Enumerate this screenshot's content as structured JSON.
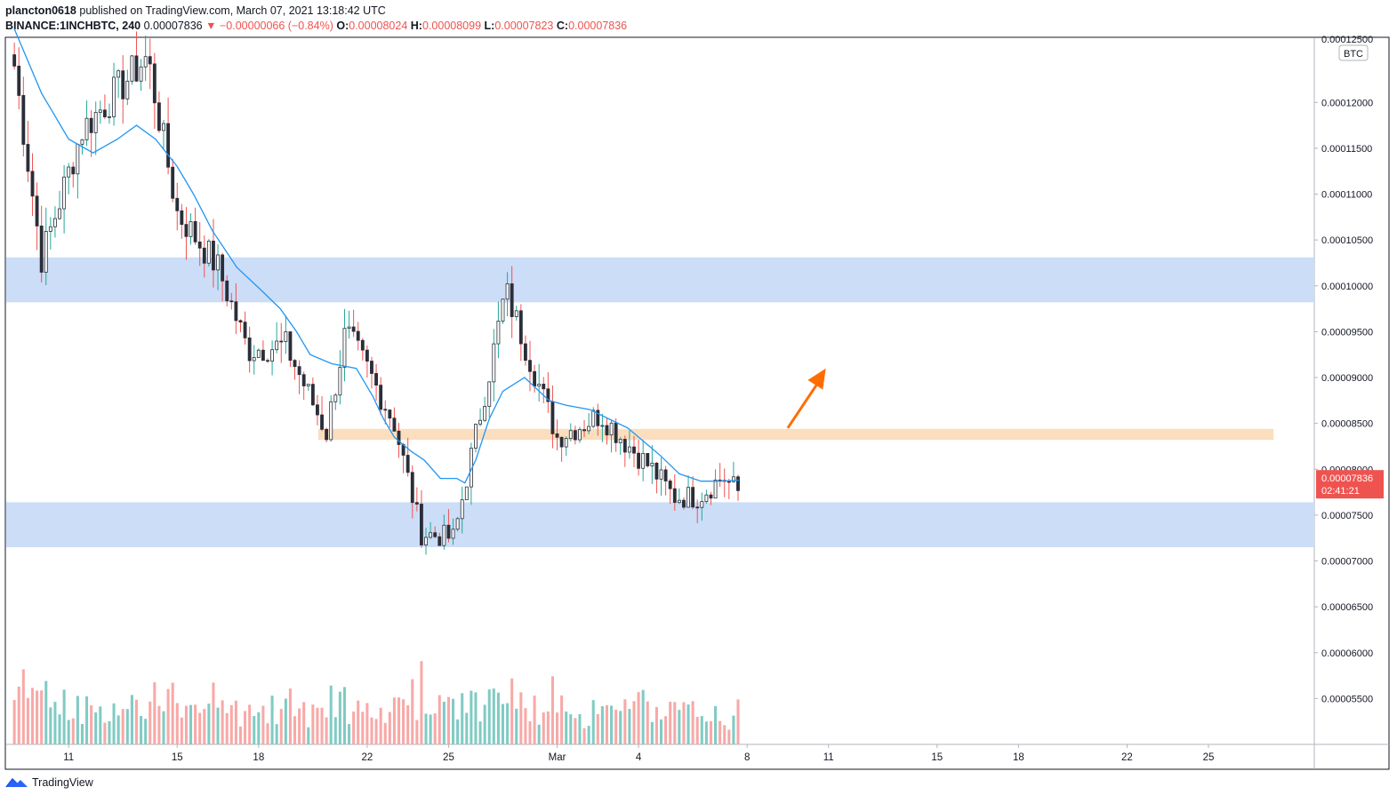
{
  "header": {
    "publisher": "plancton0618",
    "published_text": "published on TradingView.com, March 07, 2021 13:18:42 UTC",
    "symbol": "BINANCE:1INCHBTC, 240",
    "last_price": "0.00007836",
    "change_arrow": "▼",
    "change": "−0.00000066 (−0.84%)",
    "o_label": "O:",
    "o_value": "0.00008024",
    "h_label": "H:",
    "h_value": "0.00008099",
    "l_label": "L:",
    "l_value": "0.00007823",
    "c_label": "C:",
    "c_value": "0.00007836"
  },
  "footer": {
    "brand": "TradingView",
    "logo_icon": "tradingview-logo-icon"
  },
  "colors": {
    "up": "#26a69a",
    "down": "#ef5350",
    "candle_body": "#2a2e39",
    "ma_line": "#2196f3",
    "support_zone": "#c9dbf7",
    "orange_zone": "#fbdcbb",
    "arrow": "#ff6d00",
    "price_badge": "#ef5350",
    "grid": "#e0e3eb"
  },
  "chart_data": {
    "type": "candlestick",
    "currency_badge": "BTC",
    "y_range": [
      5e-05,
      0.000127
    ],
    "y_ticks": [
      "0.00005500",
      "0.00006000",
      "0.00006500",
      "0.00007000",
      "0.00007500",
      "0.00008000",
      "0.00008500",
      "0.00009000",
      "0.00009500",
      "0.00010000",
      "0.00010500",
      "0.00011000",
      "0.00011500",
      "0.00012000"
    ],
    "y_tick_values": [
      5.5e-05,
      6e-05,
      6.5e-05,
      7e-05,
      7.5e-05,
      8e-05,
      8.5e-05,
      9e-05,
      9.5e-05,
      0.0001,
      0.000105,
      0.00011,
      0.000115,
      0.00012
    ],
    "top_partial_label": "0.00012500",
    "x_ticks": [
      "11",
      "15",
      "18",
      "22",
      "25",
      "Mar",
      "4",
      "8",
      "11",
      "15",
      "18",
      "22",
      "25"
    ],
    "x_tick_days": [
      2,
      6,
      9,
      13,
      16,
      20,
      23,
      27,
      30,
      34,
      37,
      41,
      44
    ],
    "x_day_range": [
      -0.3,
      47.9
    ],
    "current_price": {
      "label": "0.00007836",
      "countdown": "02:41:21",
      "value": 7.836e-05
    },
    "zones": [
      {
        "kind": "resistance",
        "color": "blue",
        "low": 9.82e-05,
        "high": 0.0001031,
        "from_day": -0.3,
        "to_day": 47.9
      },
      {
        "kind": "pivot",
        "color": "orange",
        "low": 8.32e-05,
        "high": 8.44e-05,
        "from_day": 11.2,
        "to_day": 46.4
      },
      {
        "kind": "support",
        "color": "blue",
        "low": 7.15e-05,
        "high": 7.64e-05,
        "from_day": -0.3,
        "to_day": 47.9
      }
    ],
    "arrow": {
      "from_day": 28.5,
      "from_value": 8.45e-05,
      "to_day": 29.9,
      "to_value": 9.1e-05
    },
    "key_points": [
      [
        0.0,
        0.000124
      ],
      [
        1.0,
        0.000103
      ],
      [
        2.5,
        0.000117
      ],
      [
        4.9,
        0.000125
      ],
      [
        6.0,
        0.000108
      ],
      [
        7.5,
        0.000102
      ],
      [
        8.6,
        9.3e-05
      ],
      [
        10.0,
        9.35e-05
      ],
      [
        11.5,
        8.4e-05
      ],
      [
        12.2,
        9.5e-05
      ],
      [
        13.0,
        9.1e-05
      ],
      [
        14.0,
        8.5e-05
      ],
      [
        15.0,
        7.3e-05
      ],
      [
        16.2,
        7.25e-05
      ],
      [
        16.8,
        8.1e-05
      ],
      [
        17.6,
        9.2e-05
      ],
      [
        18.1,
        9.95e-05
      ],
      [
        19.0,
        9.2e-05
      ],
      [
        20.0,
        8.35e-05
      ],
      [
        21.0,
        8.5e-05
      ],
      [
        21.6,
        8.6e-05
      ],
      [
        22.5,
        8.3e-05
      ],
      [
        23.5,
        8e-05
      ],
      [
        24.3,
        7.7e-05
      ],
      [
        25.2,
        7.7e-05
      ],
      [
        26.1,
        7.92e-05
      ],
      [
        26.7,
        7.75e-05
      ]
    ],
    "ma_points": [
      [
        0.0,
        0.000128
      ],
      [
        1.0,
        0.000121
      ],
      [
        2.0,
        0.000116
      ],
      [
        2.9,
        0.0001145
      ],
      [
        3.8,
        0.000116
      ],
      [
        4.5,
        0.0001175
      ],
      [
        5.2,
        0.000116
      ],
      [
        6.0,
        0.000113
      ],
      [
        6.6,
        0.00011
      ],
      [
        7.3,
        0.000106
      ],
      [
        8.2,
        0.000102
      ],
      [
        9.1,
        9.95e-05
      ],
      [
        9.8,
        9.75e-05
      ],
      [
        10.4,
        9.5e-05
      ],
      [
        10.9,
        9.25e-05
      ],
      [
        11.7,
        9.15e-05
      ],
      [
        12.6,
        9.1e-05
      ],
      [
        13.2,
        8.8e-05
      ],
      [
        13.6,
        8.55e-05
      ],
      [
        14.0,
        8.35e-05
      ],
      [
        14.6,
        8.2e-05
      ],
      [
        15.1,
        8.1e-05
      ],
      [
        15.7,
        7.9e-05
      ],
      [
        16.3,
        7.9e-05
      ],
      [
        16.6,
        7.85e-05
      ],
      [
        17.0,
        8.1e-05
      ],
      [
        17.5,
        8.55e-05
      ],
      [
        18.0,
        8.85e-05
      ],
      [
        18.8,
        9e-05
      ],
      [
        19.7,
        8.75e-05
      ],
      [
        20.3,
        8.7e-05
      ],
      [
        21.2,
        8.65e-05
      ],
      [
        21.9,
        8.55e-05
      ],
      [
        22.6,
        8.45e-05
      ],
      [
        23.2,
        8.3e-05
      ],
      [
        23.8,
        8.15e-05
      ],
      [
        24.5,
        7.95e-05
      ],
      [
        25.3,
        7.87e-05
      ],
      [
        26.1,
        7.87e-05
      ],
      [
        26.7,
        7.88e-05
      ]
    ],
    "volume_max_value": 100
  }
}
